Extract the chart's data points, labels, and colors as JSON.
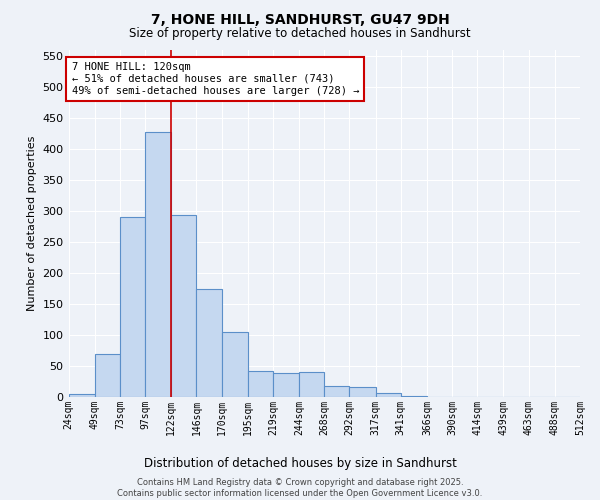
{
  "title": "7, HONE HILL, SANDHURST, GU47 9DH",
  "subtitle": "Size of property relative to detached houses in Sandhurst",
  "xlabel": "Distribution of detached houses by size in Sandhurst",
  "ylabel": "Number of detached properties",
  "bar_color": "#c5d8f0",
  "bar_edge_color": "#5b8fc9",
  "background_color": "#eef2f8",
  "grid_color": "#ffffff",
  "vline_x": 122,
  "vline_color": "#cc0000",
  "annotation_text": "7 HONE HILL: 120sqm\n← 51% of detached houses are smaller (743)\n49% of semi-detached houses are larger (728) →",
  "annotation_box_color": "#ffffff",
  "annotation_box_edge": "#cc0000",
  "footer_text": "Contains HM Land Registry data © Crown copyright and database right 2025.\nContains public sector information licensed under the Open Government Licence v3.0.",
  "bin_labels": [
    "24sqm",
    "49sqm",
    "73sqm",
    "97sqm",
    "122sqm",
    "146sqm",
    "170sqm",
    "195sqm",
    "219sqm",
    "244sqm",
    "268sqm",
    "292sqm",
    "317sqm",
    "341sqm",
    "366sqm",
    "390sqm",
    "414sqm",
    "439sqm",
    "463sqm",
    "488sqm",
    "512sqm"
  ],
  "bin_edges": [
    24,
    49,
    73,
    97,
    122,
    146,
    170,
    195,
    219,
    244,
    268,
    292,
    317,
    341,
    366,
    390,
    414,
    439,
    463,
    488,
    512
  ],
  "bar_heights": [
    5,
    70,
    290,
    428,
    293,
    175,
    105,
    42,
    38,
    40,
    17,
    16,
    6,
    1,
    0,
    0,
    0,
    0,
    0,
    0
  ],
  "ylim": [
    0,
    560
  ],
  "yticks": [
    0,
    50,
    100,
    150,
    200,
    250,
    300,
    350,
    400,
    450,
    500,
    550
  ]
}
